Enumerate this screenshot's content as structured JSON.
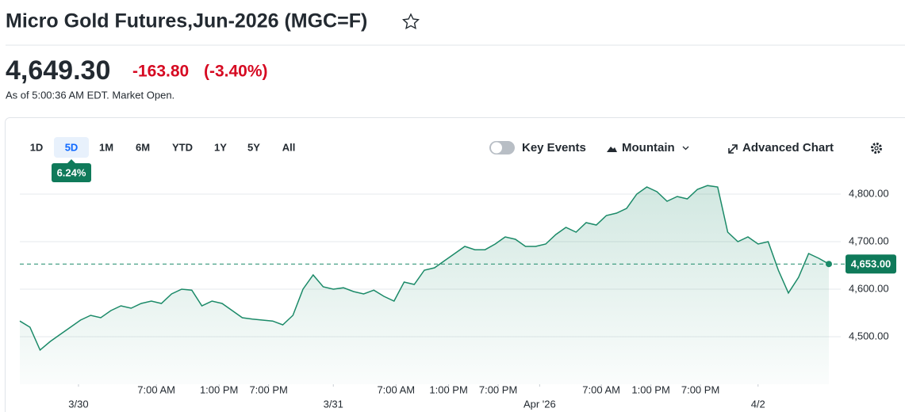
{
  "header": {
    "title": "Micro Gold Futures,Jun-2026 (MGC=F)"
  },
  "quote": {
    "price": "4,649.30",
    "change": "-163.80",
    "change_percent": "(-3.40%)",
    "as_of": "As of 5:00:36 AM EDT. Market Open."
  },
  "toolbar": {
    "ranges": [
      "1D",
      "5D",
      "1M",
      "6M",
      "YTD",
      "1Y",
      "5Y",
      "All"
    ],
    "selected": 1,
    "range_change": "6.24%",
    "key_events": "Key Events",
    "chart_style": "Mountain",
    "advanced_chart": "Advanced Chart"
  },
  "chart_data": {
    "type": "area",
    "color": "#1b8a68",
    "values": [
      4533,
      4520,
      4472,
      4490,
      4505,
      4520,
      4535,
      4545,
      4540,
      4555,
      4565,
      4560,
      4570,
      4575,
      4570,
      4590,
      4600,
      4598,
      4565,
      4575,
      4570,
      4555,
      4540,
      4537,
      4535,
      4533,
      4525,
      4545,
      4600,
      4630,
      4605,
      4600,
      4603,
      4595,
      4590,
      4598,
      4585,
      4575,
      4615,
      4610,
      4640,
      4645,
      4660,
      4675,
      4690,
      4683,
      4683,
      4695,
      4710,
      4705,
      4690,
      4690,
      4695,
      4715,
      4730,
      4720,
      4740,
      4735,
      4755,
      4760,
      4770,
      4800,
      4815,
      4805,
      4785,
      4795,
      4790,
      4810,
      4818,
      4815,
      4720,
      4700,
      4710,
      4695,
      4700,
      4640,
      4592,
      4625,
      4675,
      4665,
      4653
    ],
    "xlim": [
      0,
      80
    ],
    "xticks": [
      {
        "value": 5.8,
        "label": "3/30"
      },
      {
        "value": 13.5,
        "label": "7:00 AM"
      },
      {
        "value": 19.7,
        "label": "1:00 PM"
      },
      {
        "value": 24.6,
        "label": "7:00 PM"
      },
      {
        "value": 31,
        "label": "3/31"
      },
      {
        "value": 37.2,
        "label": "7:00 AM"
      },
      {
        "value": 42.4,
        "label": "1:00 PM"
      },
      {
        "value": 47.3,
        "label": "7:00 PM"
      },
      {
        "value": 51.4,
        "label": "Apr '26"
      },
      {
        "value": 57.5,
        "label": "7:00 AM"
      },
      {
        "value": 62.4,
        "label": "1:00 PM"
      },
      {
        "value": 67.3,
        "label": "7:00 PM"
      },
      {
        "value": 73,
        "label": "4/2"
      }
    ],
    "ylim": [
      4400,
      4825
    ],
    "yticks": [
      {
        "value": 4500,
        "label": "4,500.00"
      },
      {
        "value": 4600,
        "label": "4,600.00"
      },
      {
        "value": 4700,
        "label": "4,700.00"
      },
      {
        "value": 4800,
        "label": "4,800.00"
      }
    ],
    "reference": {
      "value": 4653,
      "label": "4,653.00"
    },
    "grid": true
  }
}
